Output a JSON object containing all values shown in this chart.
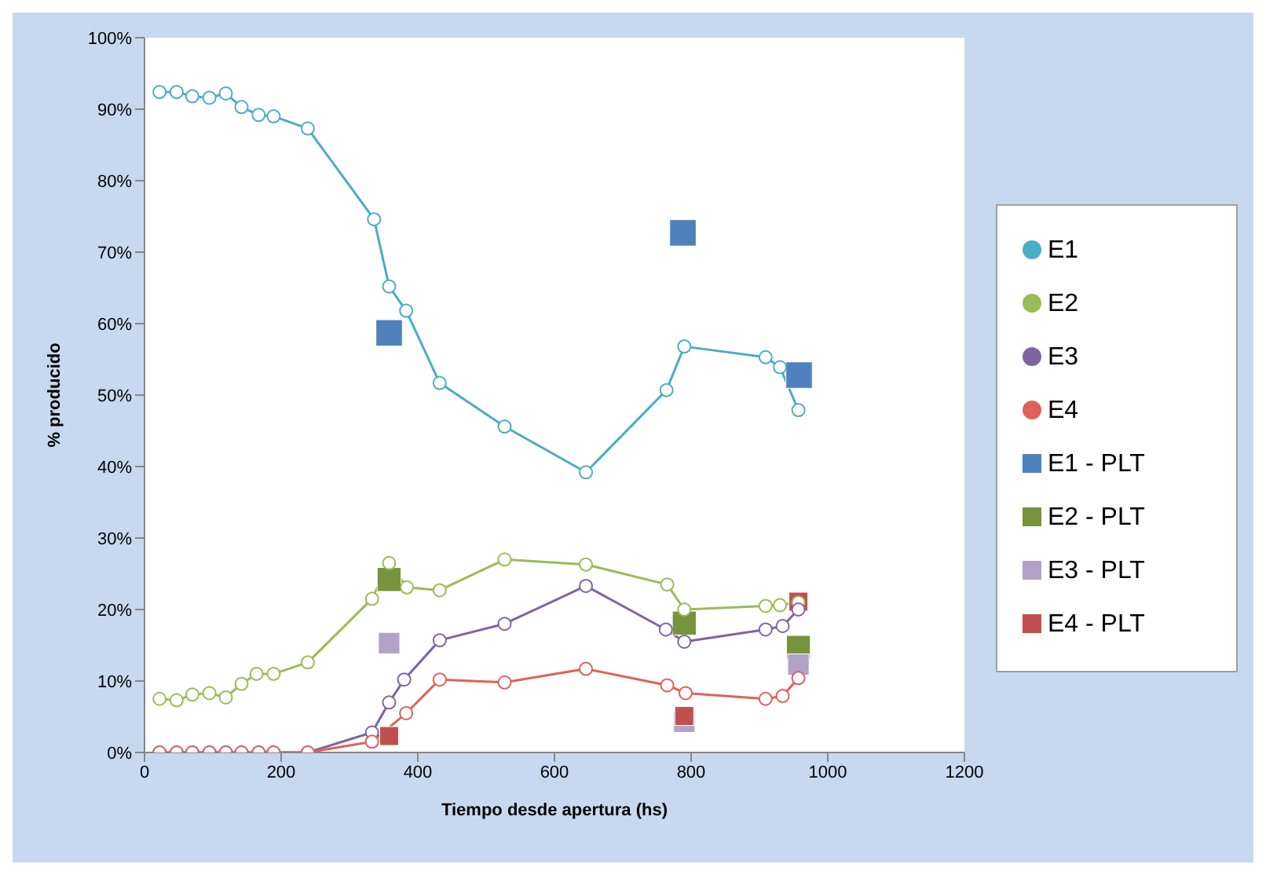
{
  "chart_data": {
    "type": "line",
    "xlabel": "Tiempo desde apertura (hs)",
    "ylabel": "% producido",
    "xlim": [
      0,
      1200
    ],
    "xticks": [
      0,
      200,
      400,
      600,
      800,
      1000,
      1200
    ],
    "ylim": [
      0,
      100
    ],
    "yticks": [
      {
        "value": 0,
        "label": "0%"
      },
      {
        "value": 10,
        "label": "10%"
      },
      {
        "value": 20,
        "label": "20%"
      },
      {
        "value": 30,
        "label": "30%"
      },
      {
        "value": 40,
        "label": "40%"
      },
      {
        "value": 50,
        "label": "50%"
      },
      {
        "value": 60,
        "label": "60%"
      },
      {
        "value": 70,
        "label": "70%"
      },
      {
        "value": 80,
        "label": "80%"
      },
      {
        "value": 90,
        "label": "90%"
      },
      {
        "value": 100,
        "label": "100%"
      }
    ],
    "legend": "right",
    "grid": false,
    "series": [
      {
        "name": "E1",
        "marker": "circle",
        "color": "#4bacc6",
        "x": [
          22,
          47,
          70,
          95,
          119,
          142,
          167,
          189,
          239,
          336,
          358,
          383,
          432,
          527,
          646,
          764,
          790,
          909,
          930,
          957
        ],
        "values": [
          92.4,
          92.4,
          91.8,
          91.6,
          92.2,
          90.3,
          89.2,
          89,
          87.3,
          74.6,
          65.2,
          61.8,
          51.7,
          45.6,
          39.2,
          50.7,
          56.8,
          55.3,
          53.9,
          47.9
        ]
      },
      {
        "name": "E2",
        "marker": "circle",
        "color": "#9bbb59",
        "x": [
          22,
          47,
          70,
          95,
          119,
          142,
          164,
          189,
          239,
          333,
          358,
          384,
          432,
          527,
          646,
          765,
          790,
          909,
          930,
          957
        ],
        "values": [
          7.5,
          7.3,
          8.1,
          8.3,
          7.7,
          9.6,
          11,
          11,
          12.6,
          21.5,
          26.5,
          23.1,
          22.7,
          27,
          26.3,
          23.5,
          20,
          20.5,
          20.6,
          21
        ]
      },
      {
        "name": "E3",
        "marker": "circle",
        "color": "#8064a2",
        "x": [
          22,
          47,
          70,
          95,
          119,
          142,
          167,
          189,
          239,
          333,
          358,
          380,
          432,
          527,
          646,
          763,
          790,
          909,
          934,
          957
        ],
        "values": [
          0,
          0,
          0,
          0,
          0,
          0,
          0,
          0,
          0,
          2.8,
          7,
          10.2,
          15.7,
          18,
          23.3,
          17.2,
          15.5,
          17.2,
          17.7,
          20
        ]
      },
      {
        "name": "E4",
        "marker": "circle",
        "color": "#e0605a",
        "x": [
          22,
          47,
          70,
          95,
          119,
          142,
          167,
          189,
          239,
          333,
          383,
          432,
          527,
          646,
          765,
          792,
          909,
          934,
          957
        ],
        "values": [
          0,
          0,
          0,
          0,
          0,
          0,
          0,
          0,
          0,
          1.5,
          5.5,
          10.2,
          9.8,
          11.7,
          9.4,
          8.3,
          7.5,
          7.9,
          10.4
        ]
      },
      {
        "name": "E1 - PLT",
        "type": "scatter",
        "marker": "square",
        "color": "#4f81bd",
        "x": [
          358,
          788,
          958
        ],
        "values": [
          58.7,
          72.7,
          52.8
        ]
      },
      {
        "name": "E2 - PLT",
        "type": "scatter",
        "marker": "square",
        "color": "#77933c",
        "x": [
          358,
          790,
          957
        ],
        "values": [
          24.2,
          18.1,
          14.7
        ]
      },
      {
        "name": "E3 - PLT",
        "type": "scatter",
        "marker": "square",
        "color": "#b3a2c7",
        "x": [
          358,
          790,
          957
        ],
        "values": [
          15.3,
          4.3,
          12.3
        ]
      },
      {
        "name": "E4 - PLT",
        "type": "scatter",
        "marker": "square",
        "color": "#c0504d",
        "x": [
          358,
          790,
          957
        ],
        "values": [
          2.3,
          5.1,
          21.1
        ]
      }
    ]
  }
}
